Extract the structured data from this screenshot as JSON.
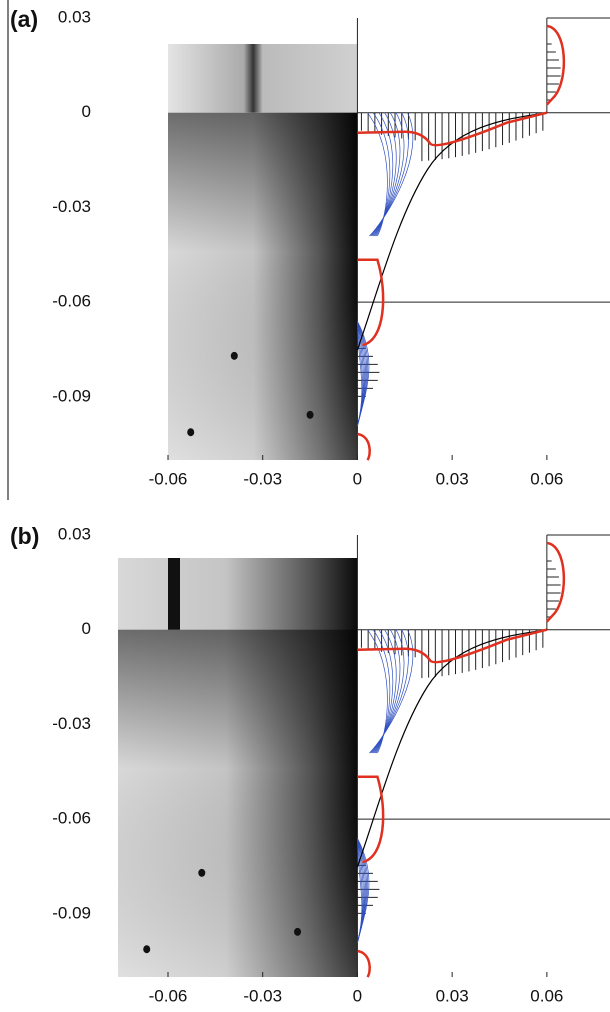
{
  "chart_data": [
    {
      "type": "image",
      "panel_label": "(a)",
      "xlim": [
        -0.079,
        0.08
      ],
      "ylim": [
        -0.11,
        0.03
      ],
      "xticks": [
        -0.06,
        -0.03,
        0,
        0.03,
        0.06
      ],
      "yticks": [
        0.03,
        0,
        -0.03,
        -0.06,
        -0.09
      ]
    },
    {
      "type": "image",
      "panel_label": "(b)",
      "xlim": [
        -0.079,
        0.08
      ],
      "ylim": [
        -0.11,
        0.03
      ],
      "xticks": [
        -0.06,
        -0.03,
        0,
        0.03,
        0.06
      ],
      "yticks": [
        0.03,
        0,
        -0.03,
        -0.06,
        -0.09
      ]
    }
  ]
}
